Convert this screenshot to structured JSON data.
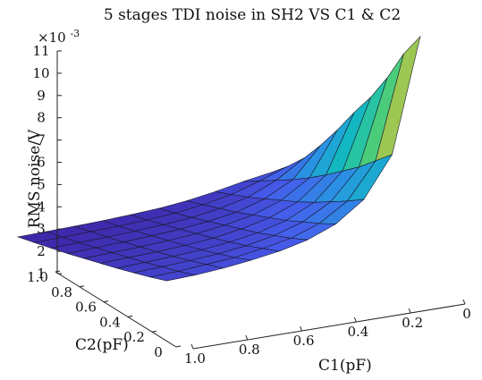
{
  "chart_data": {
    "type": "surface",
    "title": "5 stages TDI noise in SH2 VS C1 & C2",
    "xlabel": "C1(pF)",
    "ylabel": "C2(pF)",
    "zlabel": "RMS noise/V",
    "z_exponent_label": "×10",
    "z_exponent_power": "-3",
    "x_ticks": [
      "1.0",
      "0.8",
      "0.6",
      "0.4",
      "0.2",
      "0"
    ],
    "y_ticks": [
      "0",
      "0.2",
      "0.4",
      "0.6",
      "0.8",
      "1.0"
    ],
    "z_ticks": [
      "1",
      "2",
      "3",
      "4",
      "5",
      "6",
      "7",
      "8",
      "9",
      "10",
      "11"
    ],
    "xlim": [
      0,
      1
    ],
    "ylim": [
      0,
      1
    ],
    "zlim": [
      1,
      11
    ],
    "colormap": "parula",
    "grid": false,
    "c1_values": [
      0.1,
      0.2,
      0.3,
      0.4,
      0.5,
      0.6,
      0.7,
      0.8,
      0.9,
      1.0
    ],
    "c2_values": [
      0.1,
      0.2,
      0.3,
      0.4,
      0.5,
      0.6,
      0.7,
      0.8,
      0.9,
      1.0
    ],
    "z_values_e3": [
      [
        11.3,
        6.2,
        4.4,
        3.5,
        3.0,
        2.7,
        2.5,
        2.35,
        2.25,
        2.2
      ],
      [
        10.2,
        5.6,
        4.0,
        3.2,
        2.75,
        2.5,
        2.3,
        2.2,
        2.1,
        2.05
      ],
      [
        8.8,
        5.0,
        3.65,
        2.95,
        2.55,
        2.3,
        2.15,
        2.05,
        1.98,
        1.92
      ],
      [
        7.6,
        4.5,
        3.3,
        2.7,
        2.35,
        2.15,
        2.0,
        1.92,
        1.86,
        1.8
      ],
      [
        6.6,
        4.0,
        3.0,
        2.5,
        2.2,
        2.0,
        1.88,
        1.8,
        1.75,
        1.7
      ],
      [
        5.5,
        3.55,
        2.75,
        2.3,
        2.05,
        1.88,
        1.78,
        1.7,
        1.65,
        1.6
      ],
      [
        4.5,
        3.15,
        2.5,
        2.1,
        1.9,
        1.76,
        1.67,
        1.6,
        1.55,
        1.5
      ],
      [
        3.6,
        2.8,
        2.25,
        1.95,
        1.75,
        1.64,
        1.56,
        1.5,
        1.46,
        1.42
      ],
      [
        2.9,
        2.45,
        2.05,
        1.8,
        1.63,
        1.53,
        1.46,
        1.42,
        1.38,
        1.35
      ],
      [
        2.3,
        2.1,
        1.85,
        1.65,
        1.52,
        1.44,
        1.38,
        1.34,
        1.31,
        1.28
      ]
    ]
  }
}
